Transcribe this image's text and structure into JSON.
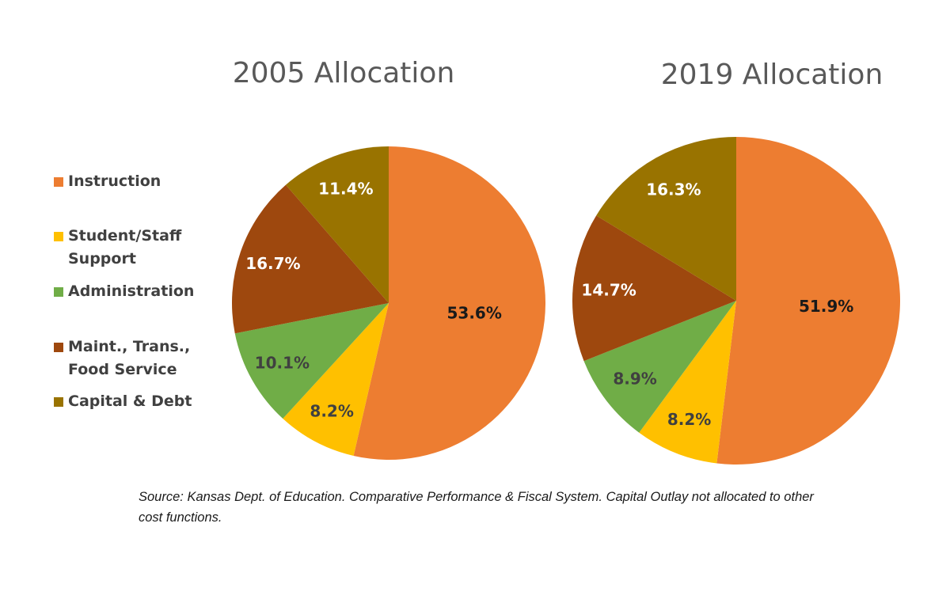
{
  "chart_data": [
    {
      "type": "pie",
      "title": "2005 Allocation",
      "categories": [
        "Instruction",
        "Student/Staff Support",
        "Administration",
        "Maint., Trans., Food Service",
        "Capital & Debt"
      ],
      "values": [
        53.6,
        8.2,
        10.1,
        16.7,
        11.4
      ],
      "data_labels": [
        "53.6%",
        "8.2%",
        "10.1%",
        "16.7%",
        "11.4%"
      ]
    },
    {
      "type": "pie",
      "title": "2019 Allocation",
      "categories": [
        "Instruction",
        "Student/Staff Support",
        "Administration",
        "Maint., Trans., Food Service",
        "Capital & Debt"
      ],
      "values": [
        51.9,
        8.2,
        8.9,
        14.7,
        16.3
      ],
      "data_labels": [
        "51.9%",
        "8.2%",
        "8.9%",
        "14.7%",
        "16.3%"
      ]
    }
  ],
  "legend": {
    "placement": "left",
    "items": [
      {
        "label": "Instruction",
        "color": "#ED7D31"
      },
      {
        "label": "Student/Staff Support",
        "color": "#FFC000"
      },
      {
        "label": "Administration",
        "color": "#70AD47"
      },
      {
        "label": "Maint., Trans., Food Service",
        "color": "#9E480E"
      },
      {
        "label": "Capital & Debt",
        "color": "#997300"
      }
    ]
  },
  "label_colors": [
    "#1a1a1a",
    "#404040",
    "#404040",
    "#ffffff",
    "#ffffff"
  ],
  "source": "Source: Kansas Dept. of Education. Comparative Performance & Fiscal System. Capital Outlay not allocated to other cost functions."
}
